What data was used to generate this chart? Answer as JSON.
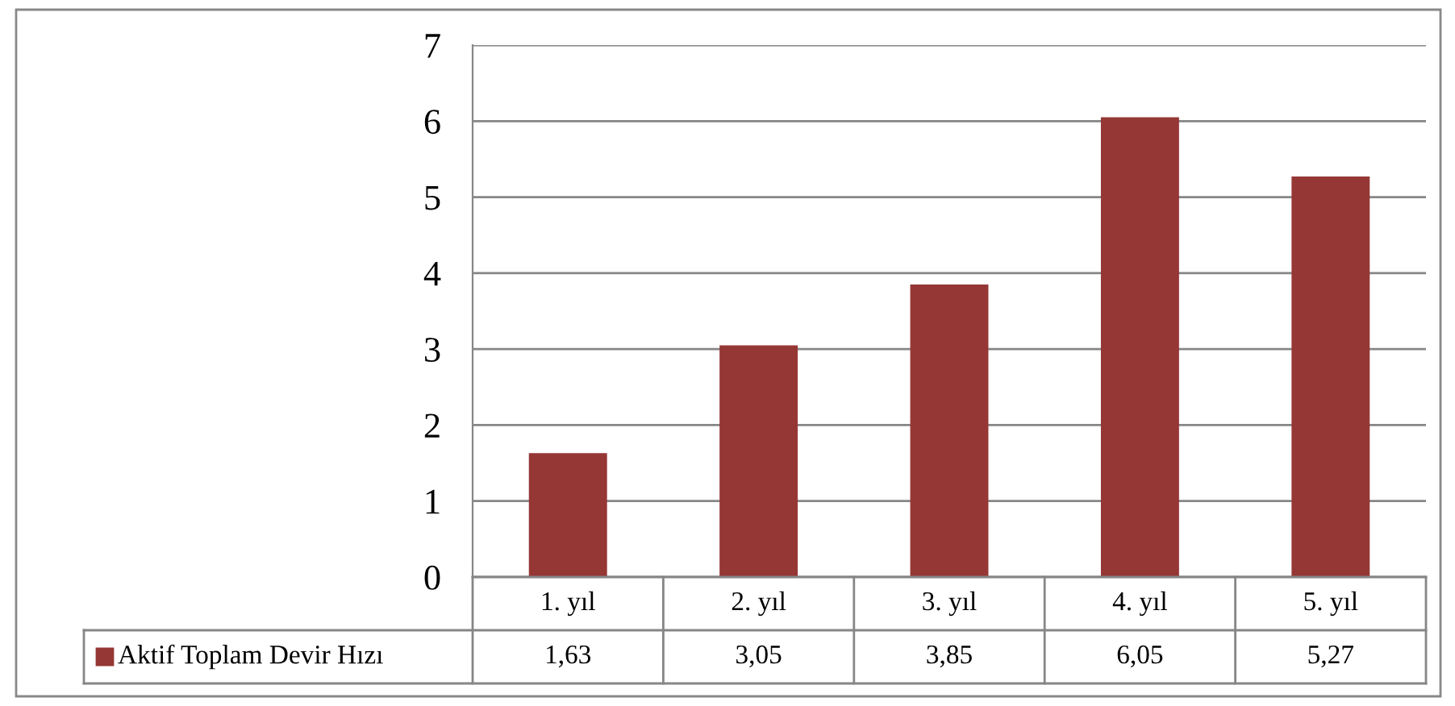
{
  "chart_data": {
    "type": "bar",
    "categories": [
      "1. yıl",
      "2. yıl",
      "3. yıl",
      "4. yıl",
      "5. yıl"
    ],
    "series": [
      {
        "name": "Aktif Toplam Devir Hızı",
        "color": "#953735",
        "values": [
          1.63,
          3.05,
          3.85,
          6.05,
          5.27
        ],
        "value_labels": [
          "1,63",
          "3,05",
          "3,85",
          "6,05",
          "5,27"
        ]
      }
    ],
    "ylim": [
      0,
      7
    ],
    "yticks": [
      0,
      1,
      2,
      3,
      4,
      5,
      6,
      7
    ],
    "grid": "y",
    "legend": "bottom"
  }
}
